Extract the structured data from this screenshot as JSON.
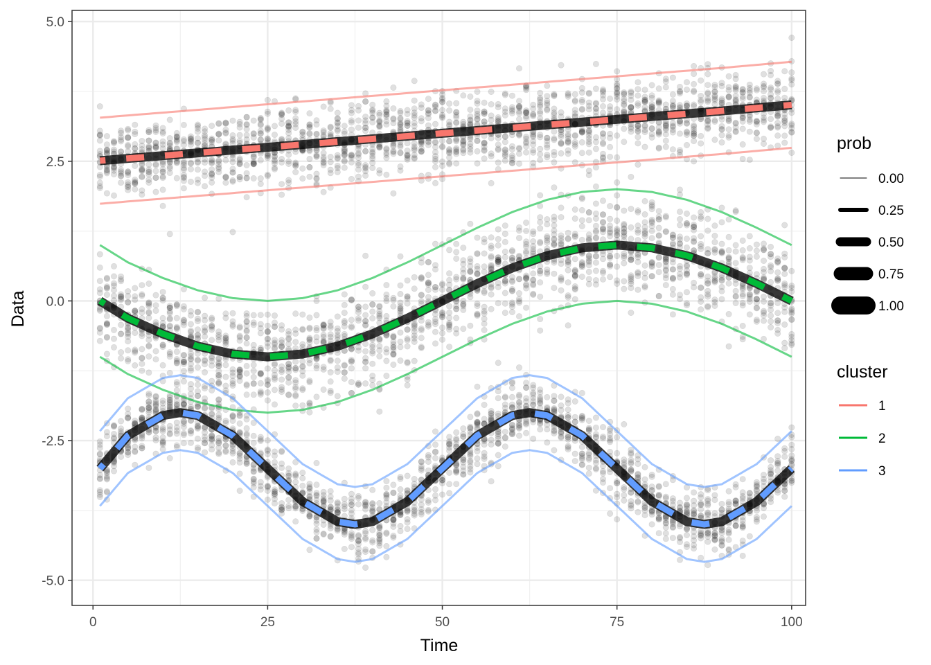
{
  "chart_data": {
    "type": "line",
    "xlabel": "Time",
    "ylabel": "Data",
    "xlim": [
      -3,
      102
    ],
    "ylim": [
      -5.45,
      5.2
    ],
    "x_ticks": [
      0,
      25,
      50,
      75,
      100
    ],
    "x_tick_labels": [
      "0",
      "25",
      "50",
      "75",
      "100"
    ],
    "y_ticks": [
      -5.0,
      -2.5,
      0.0,
      2.5,
      5.0
    ],
    "y_tick_labels": [
      "-5.0",
      "-2.5",
      "0.0",
      "2.5",
      "5.0"
    ],
    "grid": true,
    "theme": "bw",
    "series": [
      {
        "cluster": "1",
        "color": "#F8766D",
        "mean": {
          "x": [
            1,
            10,
            20,
            30,
            40,
            50,
            60,
            70,
            80,
            90,
            100
          ],
          "y": [
            2.51,
            2.6,
            2.7,
            2.8,
            2.9,
            3.0,
            3.1,
            3.2,
            3.3,
            3.4,
            3.51
          ]
        },
        "band_offset": 0.77
      },
      {
        "cluster": "2",
        "color": "#00BA38",
        "mean": {
          "x": [
            1,
            5,
            10,
            15,
            20,
            25,
            30,
            35,
            40,
            45,
            50,
            55,
            60,
            65,
            70,
            75,
            80,
            85,
            90,
            95,
            100
          ],
          "y": [
            0.0,
            -0.31,
            -0.59,
            -0.81,
            -0.95,
            -1.0,
            -0.95,
            -0.81,
            -0.59,
            -0.31,
            0.0,
            0.31,
            0.59,
            0.81,
            0.95,
            1.0,
            0.95,
            0.81,
            0.59,
            0.31,
            0.0
          ]
        },
        "band_offset": 1.0
      },
      {
        "cluster": "3",
        "color": "#619CFF",
        "mean": {
          "x": [
            1,
            5,
            10,
            12.5,
            15,
            20,
            25,
            30,
            35,
            37.5,
            40,
            45,
            50,
            55,
            60,
            62.5,
            65,
            70,
            75,
            80,
            85,
            87.5,
            90,
            95,
            100
          ],
          "y": [
            -3.0,
            -2.41,
            -2.05,
            -2.0,
            -2.05,
            -2.41,
            -3.0,
            -3.59,
            -3.95,
            -4.0,
            -3.95,
            -3.59,
            -3.0,
            -2.41,
            -2.05,
            -2.0,
            -2.05,
            -2.41,
            -3.0,
            -3.59,
            -3.95,
            -4.0,
            -3.95,
            -3.59,
            -3.0
          ]
        },
        "band_offset": 0.67
      }
    ],
    "scatter": {
      "description_only": false,
      "color": "#000000",
      "alpha": 0.12,
      "points_per_cluster_per_time": 18,
      "noise_sd": [
        0.35,
        0.45,
        0.3
      ]
    }
  },
  "legend": {
    "prob": {
      "title": "prob",
      "items": [
        {
          "label": "0.00",
          "width": 1
        },
        {
          "label": "0.25",
          "width": 6
        },
        {
          "label": "0.50",
          "width": 13
        },
        {
          "label": "0.75",
          "width": 19
        },
        {
          "label": "1.00",
          "width": 26
        }
      ]
    },
    "cluster": {
      "title": "cluster",
      "items": [
        {
          "label": "1",
          "color": "#F8766D"
        },
        {
          "label": "2",
          "color": "#00BA38"
        },
        {
          "label": "3",
          "color": "#619CFF"
        }
      ]
    }
  }
}
